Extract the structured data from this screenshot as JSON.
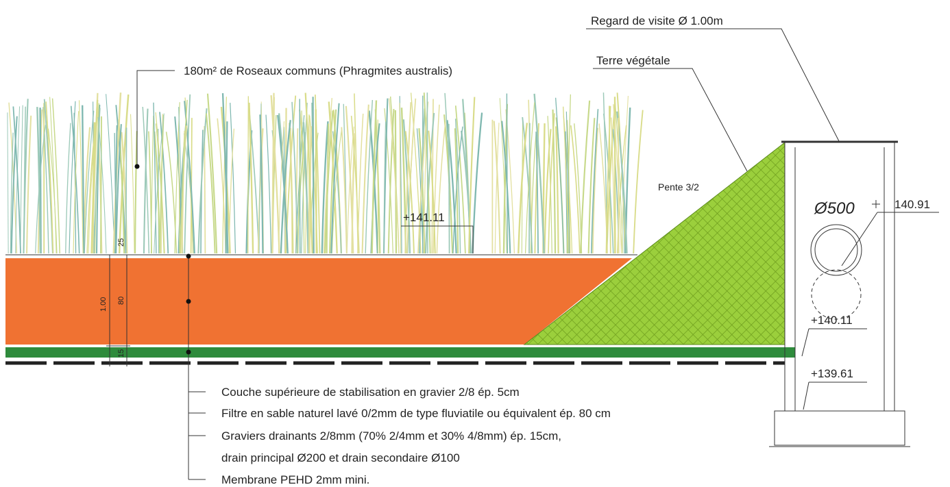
{
  "labels": {
    "manhole": "Regard de visite Ø 1.00m",
    "topsoil": "Terre végétale",
    "reeds": "180m² de Roseaux communs (Phragmites australis)",
    "slope": "Pente 3/2",
    "pipe": "Ø500",
    "levels": [
      "+141.11",
      "140.91",
      "+140.11",
      "+139.61"
    ]
  },
  "dimensions": [
    "25",
    "1.00",
    "80",
    "15"
  ],
  "layers": [
    "Couche supérieure de stabilisation en gravier 2/8 ép. 5cm",
    "Filtre en sable naturel lavé 0/2mm de type fluviatile ou équivalent ép. 80 cm",
    "Graviers drainants 2/8mm (70% 2/4mm et 30% 4/8mm) ép. 15cm,",
    "drain principal Ø200 et drain secondaire Ø100",
    "Membrane PEHD 2mm mini."
  ]
}
